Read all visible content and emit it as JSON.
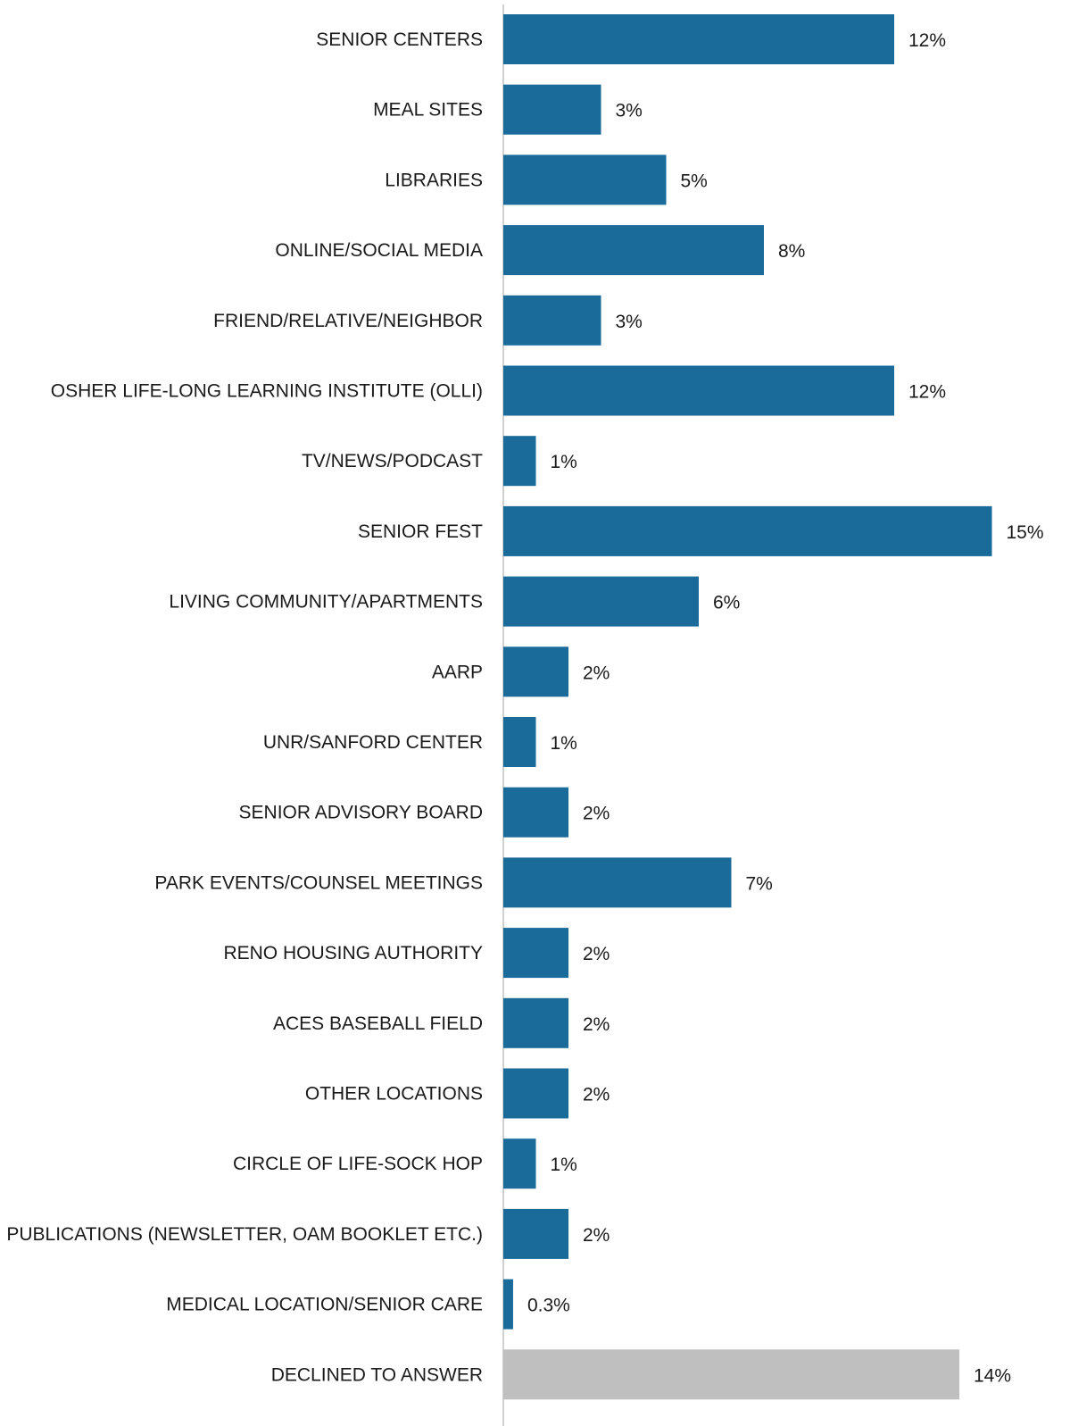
{
  "chart_data": {
    "type": "bar",
    "orientation": "horizontal",
    "categories": [
      "SENIOR CENTERS",
      "MEAL SITES",
      "LIBRARIES",
      "ONLINE/SOCIAL MEDIA",
      "FRIEND/RELATIVE/NEIGHBOR",
      "OSHER LIFE-LONG LEARNING INSTITUTE (OLLI)",
      "TV/NEWS/PODCAST",
      "SENIOR FEST",
      "LIVING COMMUNITY/APARTMENTS",
      "AARP",
      "UNR/SANFORD CENTER",
      "SENIOR ADVISORY BOARD",
      "PARK EVENTS/COUNSEL MEETINGS",
      "RENO HOUSING AUTHORITY",
      "ACES BASEBALL FIELD",
      "OTHER LOCATIONS",
      "CIRCLE OF LIFE-SOCK HOP",
      "PUBLICATIONS (NEWSLETTER, OAM BOOKLET ETC.)",
      "MEDICAL LOCATION/SENIOR CARE",
      "DECLINED TO ANSWER"
    ],
    "values": [
      12,
      3,
      5,
      8,
      3,
      12,
      1,
      15,
      6,
      2,
      1,
      2,
      7,
      2,
      2,
      2,
      1,
      2,
      0.3,
      14
    ],
    "value_labels": [
      "12%",
      "3%",
      "5%",
      "8%",
      "3%",
      "12%",
      "1%",
      "15%",
      "6%",
      "2%",
      "1%",
      "2%",
      "7%",
      "2%",
      "2%",
      "2%",
      "1%",
      "2%",
      "0.3%",
      "14%"
    ],
    "bar_colors": [
      "#1a6a9a",
      "#1a6a9a",
      "#1a6a9a",
      "#1a6a9a",
      "#1a6a9a",
      "#1a6a9a",
      "#1a6a9a",
      "#1a6a9a",
      "#1a6a9a",
      "#1a6a9a",
      "#1a6a9a",
      "#1a6a9a",
      "#1a6a9a",
      "#1a6a9a",
      "#1a6a9a",
      "#1a6a9a",
      "#1a6a9a",
      "#1a6a9a",
      "#1a6a9a",
      "#bfbfbf"
    ],
    "xlim": [
      0,
      15
    ],
    "title": "",
    "xlabel": "",
    "ylabel": "",
    "grid": false,
    "legend": "none",
    "colors": {
      "bar": "#1a6a9a",
      "declined_bar": "#bfbfbf",
      "axis_line": "#d0d0d0",
      "text": "#1a1a1a"
    }
  }
}
